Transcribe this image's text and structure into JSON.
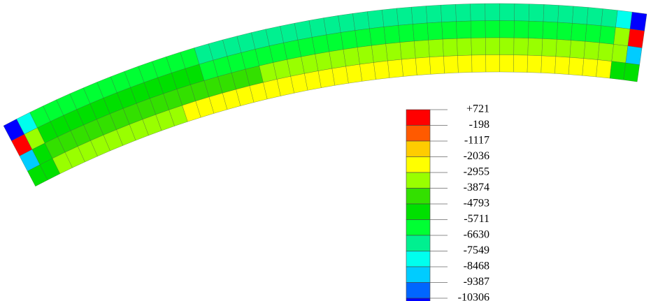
{
  "legend": {
    "labels": [
      "+721",
      "-198",
      "-1117",
      "-2036",
      "-2955",
      "-3874",
      "-4793",
      "-5711",
      "-6630",
      "-7549",
      "-8468",
      "-9387",
      "-10306"
    ],
    "colors": [
      "#ff0000",
      "#ff5a00",
      "#ffcc00",
      "#ffff00",
      "#99ff00",
      "#33e000",
      "#00e000",
      "#00ff33",
      "#00f090",
      "#00ffee",
      "#00ccff",
      "#0066ff",
      "#0000ff"
    ]
  }
}
